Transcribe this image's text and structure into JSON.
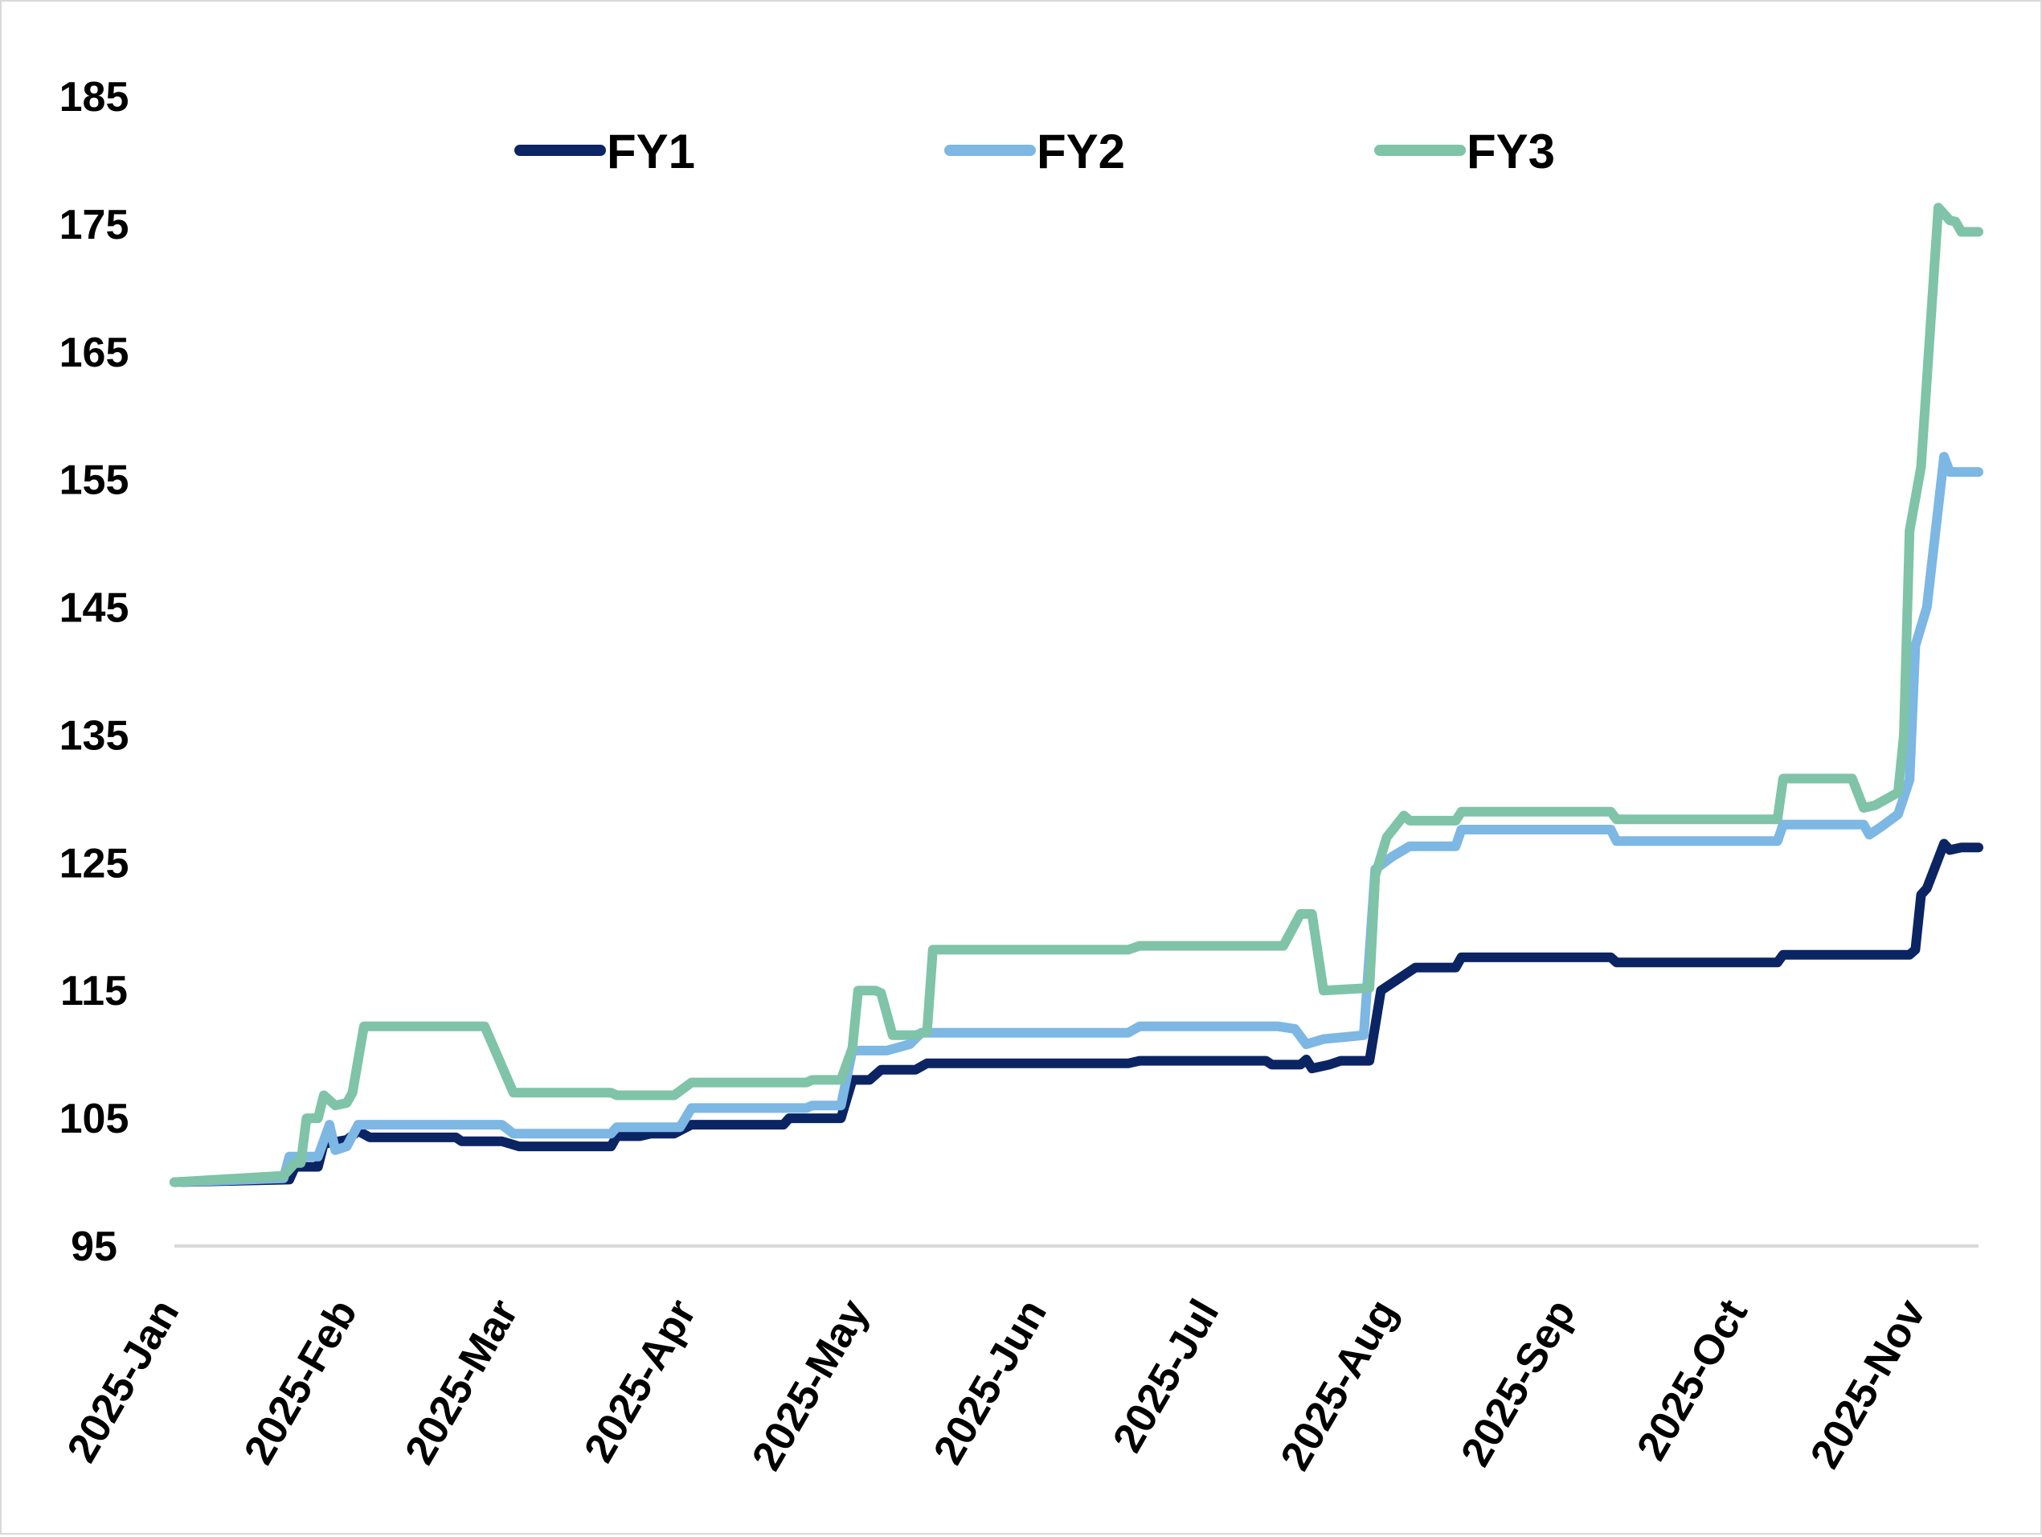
{
  "chart_data": {
    "type": "line",
    "title": "",
    "xlabel": "",
    "ylabel": "",
    "ylim": [
      95,
      185
    ],
    "yticks": [
      95,
      105,
      115,
      125,
      135,
      145,
      155,
      165,
      175,
      185
    ],
    "xlim": [
      "2025-01-02",
      "2025-11-12"
    ],
    "xticks": [
      {
        "date": "2025-01-01",
        "label": "2025-Jan"
      },
      {
        "date": "2025-02-01",
        "label": "2025-Feb"
      },
      {
        "date": "2025-03-01",
        "label": "2025-Mar"
      },
      {
        "date": "2025-04-01",
        "label": "2025-Apr"
      },
      {
        "date": "2025-05-01",
        "label": "2025-May"
      },
      {
        "date": "2025-06-01",
        "label": "2025-Jun"
      },
      {
        "date": "2025-07-01",
        "label": "2025-Jul"
      },
      {
        "date": "2025-08-01",
        "label": "2025-Aug"
      },
      {
        "date": "2025-09-01",
        "label": "2025-Sep"
      },
      {
        "date": "2025-10-01",
        "label": "2025-Oct"
      },
      {
        "date": "2025-11-01",
        "label": "2025-Nov"
      }
    ],
    "grid": false,
    "legend": "top",
    "series": [
      {
        "name": "FY1",
        "color": "#0b2463",
        "points": [
          [
            "2025-01-02",
            100
          ],
          [
            "2025-01-22",
            100.2
          ],
          [
            "2025-01-23",
            101.2
          ],
          [
            "2025-01-27",
            101.2
          ],
          [
            "2025-01-28",
            103
          ],
          [
            "2025-02-01",
            103.3
          ],
          [
            "2025-02-03",
            104
          ],
          [
            "2025-02-05",
            103.5
          ],
          [
            "2025-02-20",
            103.5
          ],
          [
            "2025-02-21",
            103.2
          ],
          [
            "2025-02-28",
            103.2
          ],
          [
            "2025-03-03",
            102.8
          ],
          [
            "2025-03-19",
            102.8
          ],
          [
            "2025-03-20",
            103.6
          ],
          [
            "2025-03-24",
            103.6
          ],
          [
            "2025-03-26",
            103.8
          ],
          [
            "2025-03-30",
            103.8
          ],
          [
            "2025-04-02",
            104.5
          ],
          [
            "2025-04-18",
            104.5
          ],
          [
            "2025-04-19",
            105
          ],
          [
            "2025-04-28",
            105
          ],
          [
            "2025-04-30",
            108
          ],
          [
            "2025-05-03",
            108
          ],
          [
            "2025-05-05",
            108.8
          ],
          [
            "2025-05-11",
            108.8
          ],
          [
            "2025-05-13",
            109.3
          ],
          [
            "2025-06-17",
            109.3
          ],
          [
            "2025-06-19",
            109.5
          ],
          [
            "2025-07-11",
            109.5
          ],
          [
            "2025-07-12",
            109.2
          ],
          [
            "2025-07-17",
            109.2
          ],
          [
            "2025-07-18",
            109.6
          ],
          [
            "2025-07-19",
            108.9
          ],
          [
            "2025-07-22",
            109.2
          ],
          [
            "2025-07-24",
            109.5
          ],
          [
            "2025-07-29",
            109.5
          ],
          [
            "2025-07-31",
            115
          ],
          [
            "2025-08-03",
            115.9
          ],
          [
            "2025-08-06",
            116.8
          ],
          [
            "2025-08-13",
            116.8
          ],
          [
            "2025-08-14",
            117.6
          ],
          [
            "2025-09-09",
            117.6
          ],
          [
            "2025-09-10",
            117.2
          ],
          [
            "2025-10-08",
            117.2
          ],
          [
            "2025-10-09",
            117.8
          ],
          [
            "2025-10-31",
            117.8
          ],
          [
            "2025-11-01",
            118.2
          ],
          [
            "2025-11-02",
            122.5
          ],
          [
            "2025-11-03",
            123
          ],
          [
            "2025-11-06",
            126.5
          ],
          [
            "2025-11-07",
            126
          ],
          [
            "2025-11-09",
            126.2
          ],
          [
            "2025-11-12",
            126.2
          ]
        ]
      },
      {
        "name": "FY2",
        "color": "#7db7e3",
        "points": [
          [
            "2025-01-02",
            100
          ],
          [
            "2025-01-21",
            100.3
          ],
          [
            "2025-01-22",
            102
          ],
          [
            "2025-01-27",
            102
          ],
          [
            "2025-01-29",
            104.5
          ],
          [
            "2025-01-30",
            102.5
          ],
          [
            "2025-02-01",
            102.8
          ],
          [
            "2025-02-03",
            104.5
          ],
          [
            "2025-02-28",
            104.5
          ],
          [
            "2025-03-02",
            103.8
          ],
          [
            "2025-03-19",
            103.8
          ],
          [
            "2025-03-20",
            104.3
          ],
          [
            "2025-03-31",
            104.3
          ],
          [
            "2025-04-02",
            105.8
          ],
          [
            "2025-04-22",
            105.8
          ],
          [
            "2025-04-23",
            106
          ],
          [
            "2025-04-28",
            106
          ],
          [
            "2025-04-30",
            110.3
          ],
          [
            "2025-05-06",
            110.3
          ],
          [
            "2025-05-10",
            110.8
          ],
          [
            "2025-05-12",
            111.7
          ],
          [
            "2025-06-17",
            111.7
          ],
          [
            "2025-06-19",
            112.2
          ],
          [
            "2025-07-13",
            112.2
          ],
          [
            "2025-07-16",
            112
          ],
          [
            "2025-07-18",
            110.8
          ],
          [
            "2025-07-21",
            111.2
          ],
          [
            "2025-07-28",
            111.5
          ],
          [
            "2025-07-30",
            124.5
          ],
          [
            "2025-08-02",
            125.5
          ],
          [
            "2025-08-05",
            126.3
          ],
          [
            "2025-08-13",
            126.3
          ],
          [
            "2025-08-14",
            127.6
          ],
          [
            "2025-09-09",
            127.6
          ],
          [
            "2025-09-10",
            126.7
          ],
          [
            "2025-10-08",
            126.7
          ],
          [
            "2025-10-09",
            128
          ],
          [
            "2025-10-23",
            128
          ],
          [
            "2025-10-24",
            127.2
          ],
          [
            "2025-10-26",
            127.8
          ],
          [
            "2025-10-29",
            128.8
          ],
          [
            "2025-10-31",
            131.5
          ],
          [
            "2025-11-01",
            142
          ],
          [
            "2025-11-03",
            145
          ],
          [
            "2025-11-06",
            156.8
          ],
          [
            "2025-11-07",
            155.6
          ],
          [
            "2025-11-12",
            155.6
          ]
        ]
      },
      {
        "name": "FY3",
        "color": "#7fc3a8",
        "points": [
          [
            "2025-01-02",
            100
          ],
          [
            "2025-01-21",
            100.5
          ],
          [
            "2025-01-23",
            101.5
          ],
          [
            "2025-01-24",
            101.5
          ],
          [
            "2025-01-25",
            105
          ],
          [
            "2025-01-27",
            105
          ],
          [
            "2025-01-28",
            106.8
          ],
          [
            "2025-01-30",
            106
          ],
          [
            "2025-02-01",
            106.2
          ],
          [
            "2025-02-02",
            107
          ],
          [
            "2025-02-04",
            112.2
          ],
          [
            "2025-02-25",
            112.2
          ],
          [
            "2025-03-02",
            107
          ],
          [
            "2025-03-19",
            107
          ],
          [
            "2025-03-20",
            106.8
          ],
          [
            "2025-03-30",
            106.8
          ],
          [
            "2025-04-02",
            107.8
          ],
          [
            "2025-04-22",
            107.8
          ],
          [
            "2025-04-23",
            108
          ],
          [
            "2025-04-28",
            108
          ],
          [
            "2025-04-30",
            110.5
          ],
          [
            "2025-05-01",
            115
          ],
          [
            "2025-05-04",
            115
          ],
          [
            "2025-05-05",
            114.8
          ],
          [
            "2025-05-07",
            111.5
          ],
          [
            "2025-05-11",
            111.5
          ],
          [
            "2025-05-13",
            111.8
          ],
          [
            "2025-05-14",
            118.2
          ],
          [
            "2025-06-17",
            118.2
          ],
          [
            "2025-06-19",
            118.5
          ],
          [
            "2025-07-14",
            118.5
          ],
          [
            "2025-07-17",
            121
          ],
          [
            "2025-07-19",
            121
          ],
          [
            "2025-07-21",
            115
          ],
          [
            "2025-07-29",
            115.2
          ],
          [
            "2025-07-30",
            124
          ],
          [
            "2025-08-01",
            127
          ],
          [
            "2025-08-04",
            128.7
          ],
          [
            "2025-08-05",
            128.3
          ],
          [
            "2025-08-13",
            128.3
          ],
          [
            "2025-08-14",
            129
          ],
          [
            "2025-09-09",
            129
          ],
          [
            "2025-09-10",
            128.4
          ],
          [
            "2025-10-08",
            128.4
          ],
          [
            "2025-10-09",
            131.6
          ],
          [
            "2025-10-21",
            131.6
          ],
          [
            "2025-10-23",
            129.3
          ],
          [
            "2025-10-25",
            129.5
          ],
          [
            "2025-10-29",
            130.5
          ],
          [
            "2025-10-30",
            135
          ],
          [
            "2025-10-31",
            151
          ],
          [
            "2025-11-02",
            156
          ],
          [
            "2025-11-05",
            176.3
          ],
          [
            "2025-11-07",
            175.3
          ],
          [
            "2025-11-08",
            175.2
          ],
          [
            "2025-11-09",
            174.4
          ],
          [
            "2025-11-12",
            174.4
          ]
        ]
      }
    ]
  }
}
